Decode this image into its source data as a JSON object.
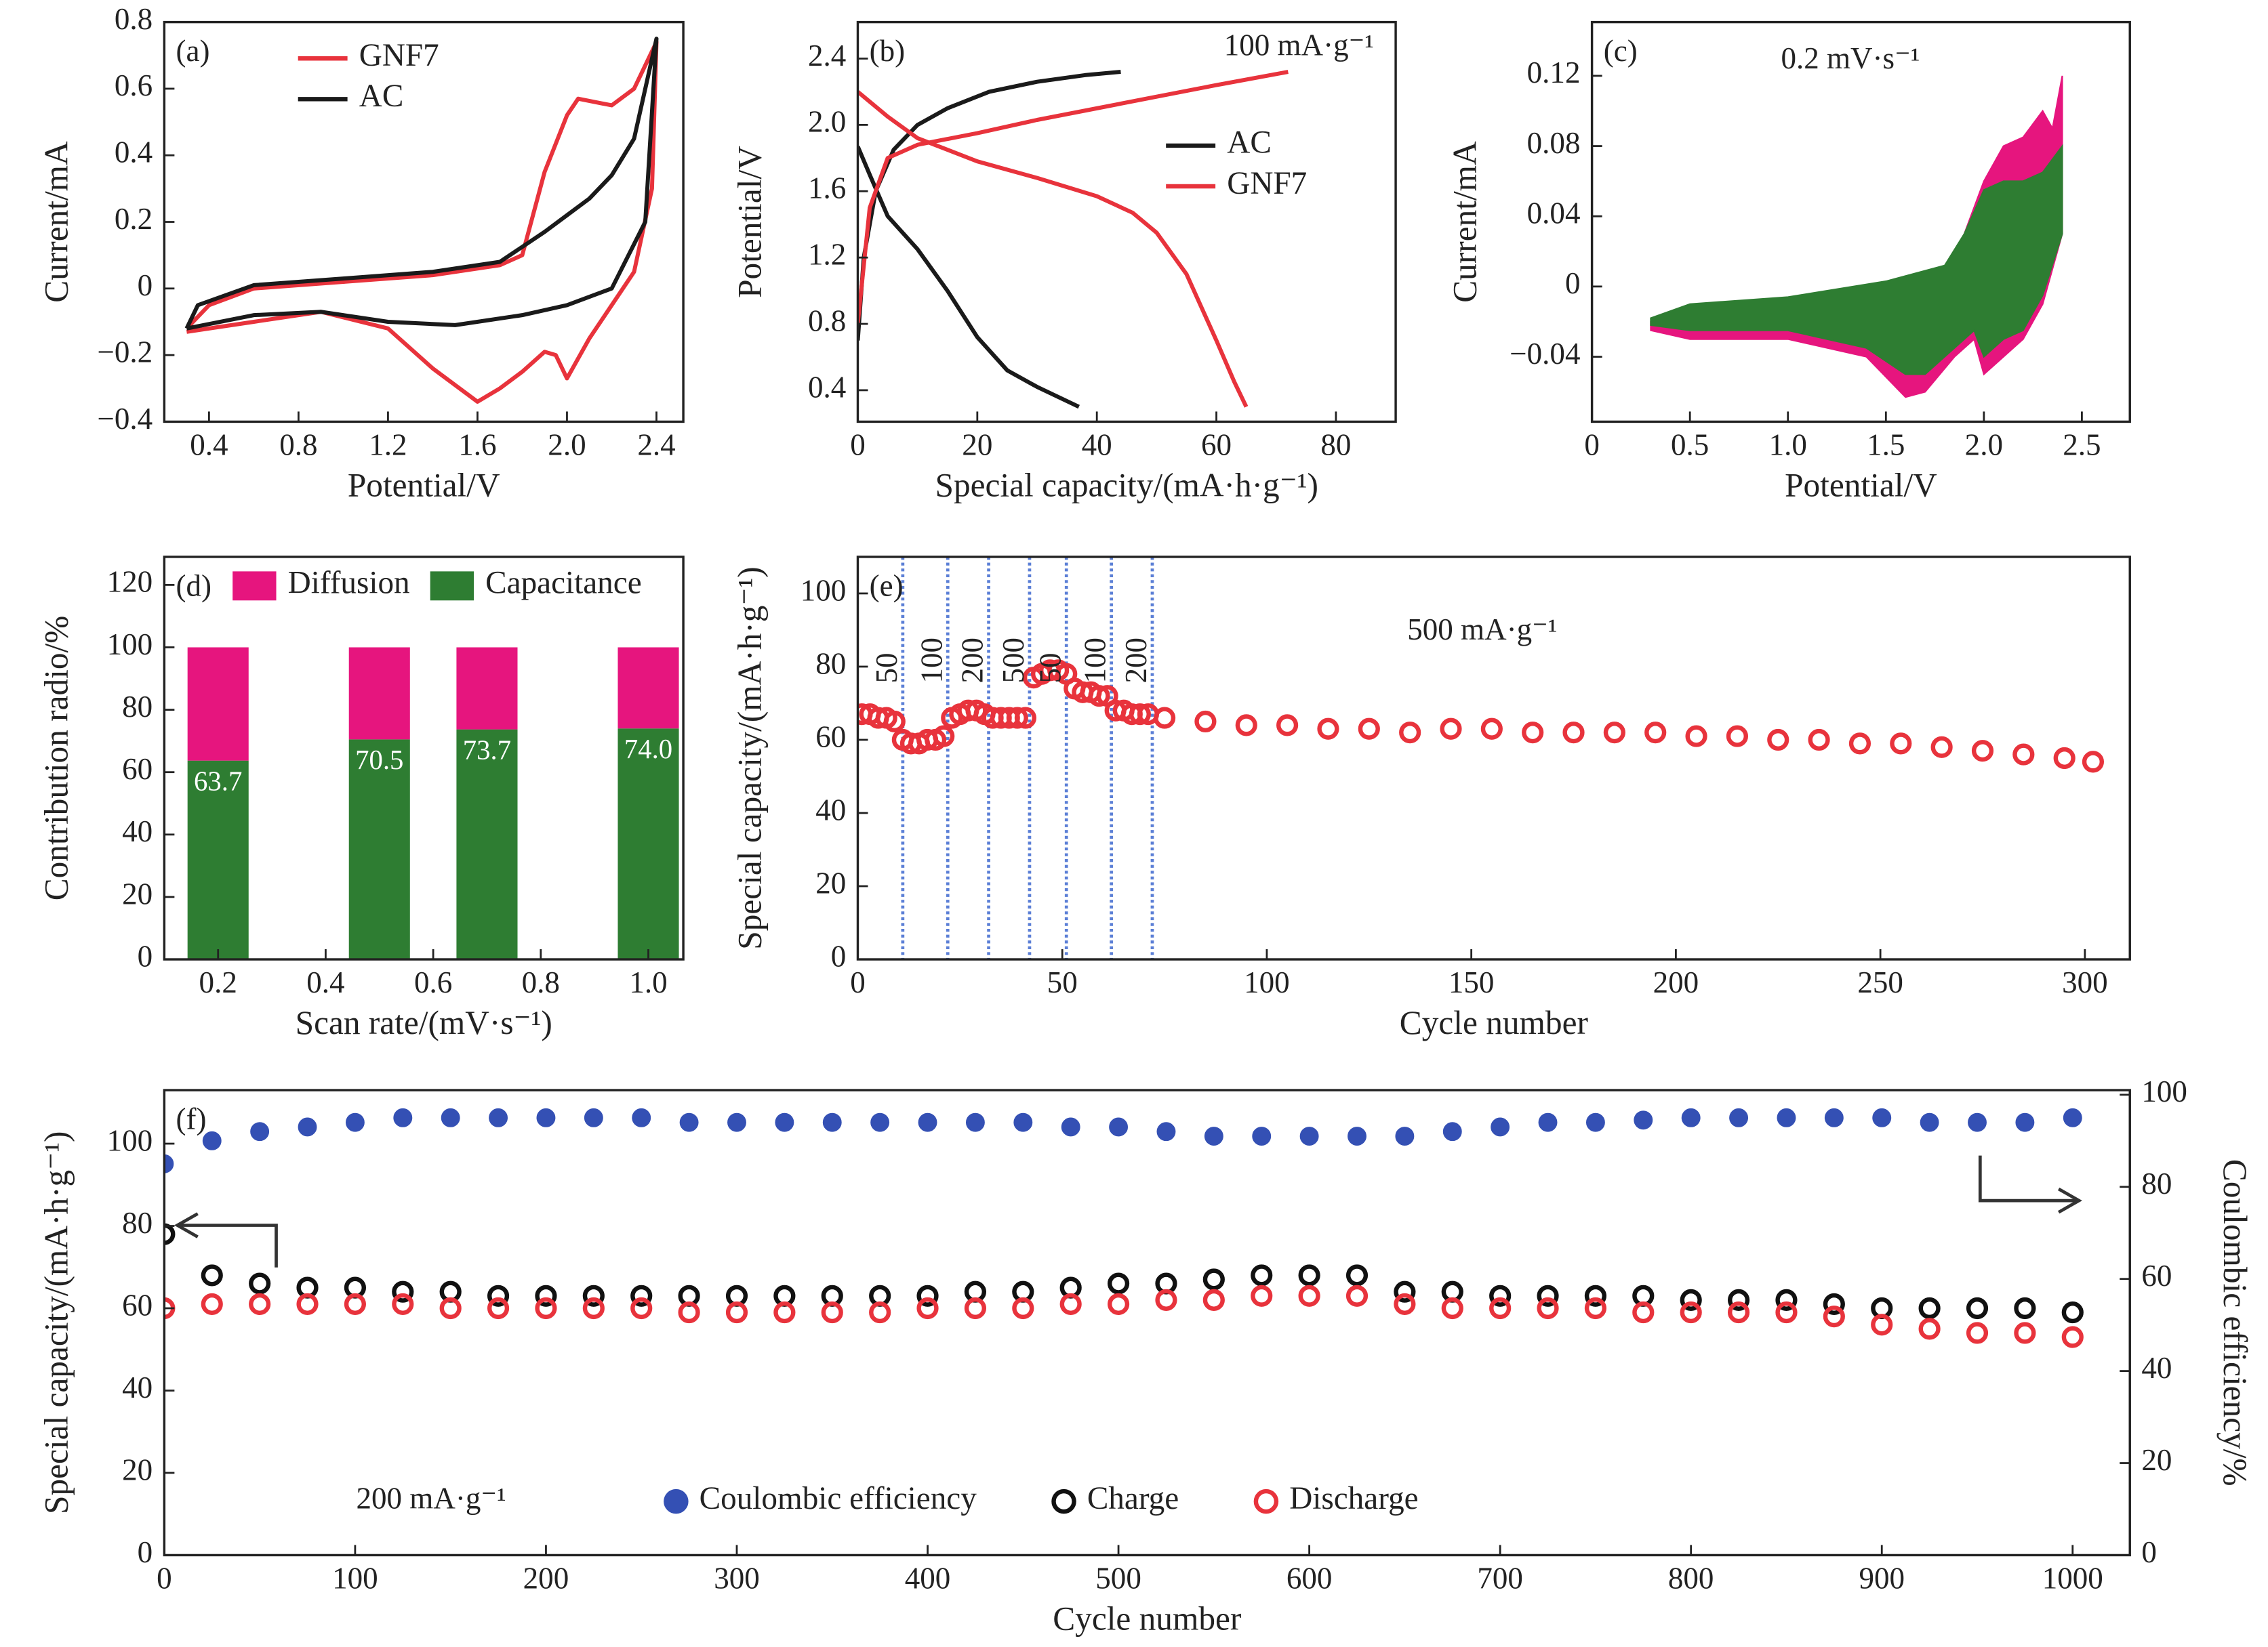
{
  "chart_data": [
    {
      "type": "line",
      "panel_label": "(a)",
      "xlabel": "Potential/V",
      "ylabel": "Current/mA",
      "legend": "upper left",
      "xlim": [
        0.2,
        2.52
      ],
      "ylim": [
        -0.4,
        0.8
      ],
      "xticks": [
        0.4,
        0.8,
        1.2,
        1.6,
        {
          "value": 2,
          "label": "2.0"
        },
        2.4
      ],
      "yticks": [
        {
          "value": -0.4,
          "label": "−0.4"
        },
        {
          "value": -0.2,
          "label": "−0.2"
        },
        0,
        0.2,
        0.4,
        0.6,
        0.8
      ],
      "series": [
        {
          "name": "GNF7",
          "color": "#e8333c",
          "x": [
            0.3,
            0.4,
            0.6,
            1.0,
            1.4,
            1.7,
            1.8,
            1.9,
            2.0,
            2.05,
            2.2,
            2.3,
            2.4,
            2.38,
            2.3,
            2.2,
            2.1,
            2.0,
            1.95,
            1.9,
            1.8,
            1.7,
            1.6,
            1.4,
            1.2,
            0.9,
            0.6,
            0.3
          ],
          "values": [
            -0.12,
            -0.05,
            0,
            0.02,
            0.04,
            0.07,
            0.1,
            0.35,
            0.52,
            0.57,
            0.55,
            0.6,
            0.74,
            0.3,
            0.05,
            -0.05,
            -0.15,
            -0.27,
            -0.2,
            -0.19,
            -0.25,
            -0.3,
            -0.34,
            -0.24,
            -0.12,
            -0.07,
            -0.1,
            -0.13
          ]
        },
        {
          "name": "AC",
          "color": "#1a1a1a",
          "x": [
            0.3,
            0.35,
            0.6,
            1.0,
            1.4,
            1.7,
            1.9,
            2.0,
            2.1,
            2.2,
            2.3,
            2.4,
            2.35,
            2.2,
            2.0,
            1.8,
            1.5,
            1.2,
            0.9,
            0.6,
            0.3
          ],
          "values": [
            -0.12,
            -0.05,
            0.01,
            0.03,
            0.05,
            0.08,
            0.17,
            0.22,
            0.27,
            0.34,
            0.45,
            0.75,
            0.2,
            0,
            -0.05,
            -0.08,
            -0.11,
            -0.1,
            -0.07,
            -0.08,
            -0.12
          ]
        }
      ]
    },
    {
      "type": "line",
      "panel_label": "(b)",
      "xlabel": "Special capacity/(mA·h·g⁻¹)",
      "ylabel": "Potential/V",
      "legend": "center right",
      "annotation": "100 mA·g⁻¹",
      "xlim": [
        0,
        90
      ],
      "ylim": [
        0.21,
        2.62
      ],
      "xticks": [
        0,
        20,
        40,
        60,
        80
      ],
      "yticks": [
        0.4,
        0.8,
        1.2,
        1.6,
        {
          "value": 2,
          "label": "2.0"
        },
        2.4
      ],
      "series": [
        {
          "name": "AC",
          "color": "#1a1a1a",
          "x": [
            0,
            1,
            3,
            6,
            10,
            15,
            22,
            30,
            38,
            44,
            null,
            0,
            2,
            5,
            10,
            15,
            20,
            25,
            30,
            37
          ],
          "values": [
            0.7,
            1.2,
            1.6,
            1.85,
            2.0,
            2.1,
            2.2,
            2.26,
            2.3,
            2.32,
            null,
            1.87,
            1.7,
            1.45,
            1.25,
            1.0,
            0.72,
            0.52,
            0.42,
            0.3
          ]
        },
        {
          "name": "GNF7",
          "color": "#e8333c",
          "x": [
            0,
            2,
            5,
            10,
            20,
            30,
            40,
            50,
            60,
            72,
            null,
            0,
            5,
            10,
            20,
            30,
            40,
            46,
            50,
            55,
            60,
            63,
            65
          ],
          "values": [
            0.8,
            1.5,
            1.8,
            1.88,
            1.95,
            2.03,
            2.1,
            2.17,
            2.24,
            2.32,
            null,
            2.2,
            2.05,
            1.92,
            1.78,
            1.68,
            1.57,
            1.47,
            1.35,
            1.1,
            0.7,
            0.45,
            0.3
          ]
        }
      ]
    },
    {
      "type": "area",
      "panel_label": "(c)",
      "xlabel": "Potential/V",
      "ylabel": "Current/mA",
      "annotation": "0.2 mV·s⁻¹",
      "xlim": [
        0,
        2.745
      ],
      "ylim": [
        -0.077,
        0.1506
      ],
      "xticks": [
        0,
        0.5,
        {
          "value": 1,
          "label": "1.0"
        },
        1.5,
        {
          "value": 2,
          "label": "2.0"
        },
        2.5
      ],
      "yticks": [
        {
          "value": -0.04,
          "label": "−0.04"
        },
        0,
        0.04,
        0.08,
        0.12
      ],
      "series": [
        {
          "color": "#e6157e",
          "x": [
            0.3,
            0.5,
            1.0,
            1.5,
            1.8,
            1.9,
            2.0,
            2.1,
            2.2,
            2.3,
            2.35,
            2.4,
            2.4,
            2.3,
            2.2,
            2.1,
            2.0,
            1.95,
            1.85,
            1.7,
            1.6,
            1.4,
            1.0,
            0.5,
            0.3
          ],
          "values": [
            -0.02,
            -0.012,
            -0.008,
            0,
            0.01,
            0.03,
            0.06,
            0.08,
            0.085,
            0.1,
            0.09,
            0.12,
            0.03,
            -0.01,
            -0.03,
            -0.04,
            -0.05,
            -0.03,
            -0.04,
            -0.06,
            -0.063,
            -0.04,
            -0.03,
            -0.03,
            -0.025
          ]
        },
        {
          "color": "#2e7d32",
          "x": [
            0.3,
            0.5,
            1.0,
            1.5,
            1.8,
            1.9,
            2.0,
            2.1,
            2.2,
            2.3,
            2.4,
            2.4,
            2.3,
            2.2,
            2.1,
            2.0,
            1.95,
            1.85,
            1.7,
            1.6,
            1.4,
            1.0,
            0.5,
            0.3
          ],
          "values": [
            -0.018,
            -0.01,
            -0.006,
            0.003,
            0.012,
            0.03,
            0.055,
            0.06,
            0.06,
            0.065,
            0.08,
            0.03,
            -0.005,
            -0.025,
            -0.03,
            -0.04,
            -0.025,
            -0.035,
            -0.05,
            -0.05,
            -0.035,
            -0.025,
            -0.025,
            -0.022
          ]
        }
      ]
    },
    {
      "type": "bar",
      "panel_label": "(d)",
      "xlabel": "Scan rate/(mV·s⁻¹)",
      "ylabel": "Contribution radio/%",
      "legend": "upper center",
      "xlim": [
        0.1,
        1.065
      ],
      "ylim": [
        0,
        129
      ],
      "xticks": [
        0.2,
        0.4,
        0.6,
        0.8,
        {
          "value": 1,
          "label": "1.0"
        }
      ],
      "yticks": [
        0,
        20,
        40,
        60,
        80,
        100,
        120
      ],
      "x": [
        0.2,
        0.5,
        0.7,
        1.0
      ],
      "series": [
        {
          "name": "Diffusion",
          "color": "#e6157e",
          "values": [
            36.3,
            29.5,
            26.3,
            26.0
          ]
        },
        {
          "name": "Capacitance",
          "color": "#2e7d32",
          "values": [
            63.7,
            70.5,
            73.7,
            74.0
          ],
          "value_labels": [
            "63.7",
            "70.5",
            "73.7",
            "74.0"
          ]
        }
      ]
    },
    {
      "type": "scatter",
      "panel_label": "(e)",
      "xlabel": "Cycle number",
      "ylabel": "Special capacity/(mA·h·g⁻¹)",
      "annotation": "500 mA·g⁻¹",
      "xlim": [
        0,
        311
      ],
      "ylim": [
        0,
        110
      ],
      "xticks": [
        0,
        50,
        100,
        150,
        200,
        250,
        300
      ],
      "yticks": [
        0,
        20,
        40,
        60,
        80,
        100
      ],
      "vlines": [
        11,
        22,
        32,
        42,
        51,
        62,
        72
      ],
      "vline_labels": [
        50,
        100,
        200,
        500,
        50,
        100,
        200
      ],
      "vline_color": "#5b7fd6",
      "x": [
        1,
        3,
        5,
        7,
        9,
        11,
        13,
        15,
        17,
        19,
        21,
        23,
        25,
        27,
        29,
        31,
        33,
        35,
        37,
        39,
        41,
        43,
        45,
        47,
        49,
        51,
        53,
        55,
        57,
        59,
        61,
        63,
        65,
        67,
        69,
        71,
        75,
        85,
        95,
        105,
        115,
        125,
        135,
        145,
        155,
        165,
        175,
        185,
        195,
        205,
        215,
        225,
        235,
        245,
        255,
        265,
        275,
        285,
        295,
        302
      ],
      "series": [
        {
          "color": "#e8333c",
          "marker": "open",
          "values": [
            67,
            67,
            66,
            66,
            65,
            60,
            59,
            59,
            60,
            60,
            61,
            66,
            67,
            68,
            68,
            67,
            66,
            66,
            66,
            66,
            66,
            77,
            78,
            79,
            79,
            78,
            74,
            73,
            73,
            72,
            72,
            68,
            68,
            67,
            67,
            67,
            66,
            65,
            64,
            64,
            63,
            63,
            62,
            63,
            63,
            62,
            62,
            62,
            62,
            61,
            61,
            60,
            60,
            59,
            59,
            58,
            57,
            56,
            55,
            54
          ]
        }
      ]
    },
    {
      "type": "scatter",
      "panel_label": "(f)",
      "xlabel": "Cycle number",
      "ylabel": "Special capacity/(mA·h·g⁻¹)",
      "y2label": "Coulombic efficiency/%",
      "legend": "lower center",
      "annotation": "200 mA·g⁻¹",
      "xlim": [
        0,
        1030
      ],
      "ylim": [
        0,
        113
      ],
      "y2lim": [
        0,
        101
      ],
      "xticks": [
        0,
        100,
        200,
        300,
        400,
        500,
        600,
        700,
        800,
        900,
        1000
      ],
      "yticks": [
        0,
        20,
        40,
        60,
        80,
        100
      ],
      "y2ticks": [
        0,
        20,
        40,
        60,
        80,
        100
      ],
      "x": [
        0,
        25,
        50,
        75,
        100,
        125,
        150,
        175,
        200,
        225,
        250,
        275,
        300,
        325,
        350,
        375,
        400,
        425,
        450,
        475,
        500,
        525,
        550,
        575,
        600,
        625,
        650,
        675,
        700,
        725,
        750,
        775,
        800,
        825,
        850,
        875,
        900,
        925,
        950,
        975,
        1000
      ],
      "series": [
        {
          "name": "Coulombic efficiency",
          "color": "#3450b4",
          "marker": "filled",
          "axis": "y2",
          "values": [
            85,
            90,
            92,
            93,
            94,
            95,
            95,
            95,
            95,
            95,
            95,
            94,
            94,
            94,
            94,
            94,
            94,
            94,
            94,
            93,
            93,
            92,
            91,
            91,
            91,
            91,
            91,
            92,
            93,
            94,
            94,
            94.5,
            95,
            95,
            95,
            95,
            95,
            94,
            94,
            94,
            95
          ]
        },
        {
          "name": "Charge",
          "color": "#111111",
          "marker": "open",
          "values": [
            78,
            68,
            66,
            65,
            65,
            64,
            64,
            63,
            63,
            63,
            63,
            63,
            63,
            63,
            63,
            63,
            63,
            64,
            64,
            65,
            66,
            66,
            67,
            68,
            68,
            68,
            64,
            64,
            63,
            63,
            63,
            63,
            62,
            62,
            62,
            61,
            60,
            60,
            60,
            60,
            59
          ]
        },
        {
          "name": "Discharge",
          "color": "#e8333c",
          "marker": "open",
          "values": [
            60,
            61,
            61,
            61,
            61,
            61,
            60,
            60,
            60,
            60,
            60,
            59,
            59,
            59,
            59,
            59,
            60,
            60,
            60,
            61,
            61,
            62,
            62,
            63,
            63,
            63,
            61,
            60,
            60,
            60,
            60,
            59,
            59,
            59,
            59,
            58,
            56,
            55,
            54,
            54,
            53
          ]
        }
      ]
    }
  ]
}
